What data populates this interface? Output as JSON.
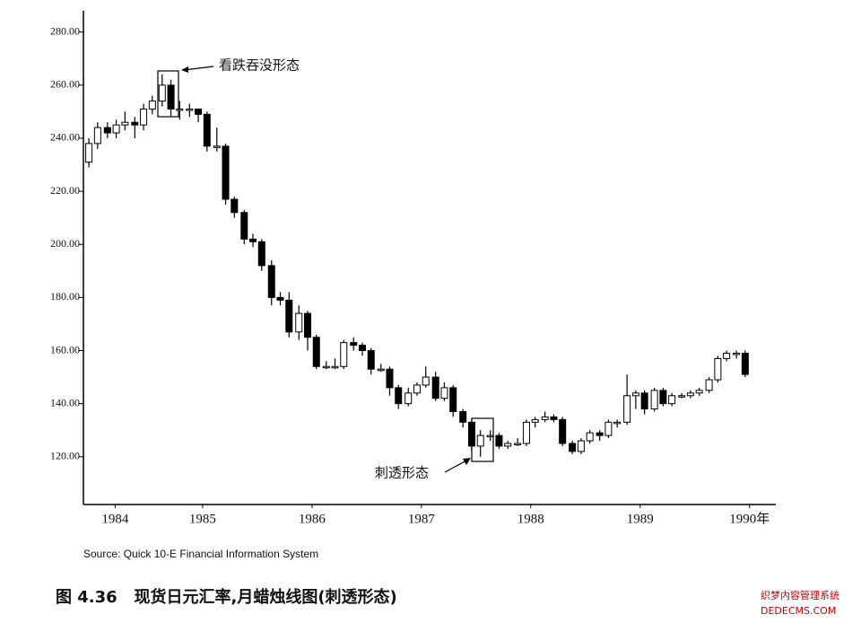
{
  "chart_data": {
    "type": "candlestick",
    "series": [
      {
        "up_color": "#ffffff",
        "down_color": "#000000",
        "color": "#000000",
        "x": [
          1984.46,
          1984.54,
          1984.63,
          1984.71,
          1984.79,
          1984.88,
          1984.96,
          1985.04,
          1985.13,
          1985.21,
          1985.29,
          1985.38,
          1985.46,
          1985.54,
          1985.63,
          1985.71,
          1985.79,
          1985.88,
          1985.96,
          1986.04,
          1986.13,
          1986.21,
          1986.29,
          1986.38,
          1986.46,
          1986.54,
          1986.63,
          1986.71,
          1986.79,
          1986.88,
          1986.96,
          1987.04,
          1987.13,
          1987.21,
          1987.29,
          1987.38,
          1987.46,
          1987.54,
          1987.63,
          1987.71,
          1987.79,
          1987.88,
          1987.96,
          1988.04,
          1988.13,
          1988.21,
          1988.29,
          1988.38,
          1988.46,
          1988.54,
          1988.63,
          1988.71,
          1988.79,
          1988.88,
          1988.96,
          1989.04,
          1989.13,
          1989.21,
          1989.29,
          1989.38,
          1989.46,
          1989.54,
          1989.63,
          1989.71,
          1989.79,
          1989.88,
          1989.96,
          1990.04,
          1990.13,
          1990.21,
          1990.29,
          1990.38,
          1990.46
        ],
        "open": [
          231,
          238,
          244,
          242,
          245,
          246,
          245,
          251,
          254,
          260,
          251,
          251,
          251,
          249,
          237,
          237,
          217,
          212,
          202,
          201,
          192,
          180,
          179,
          167,
          174,
          165,
          154,
          154,
          154,
          163,
          162,
          160,
          153,
          153,
          146,
          140,
          144,
          147,
          150,
          142,
          146,
          137,
          133,
          124,
          128,
          128,
          124,
          125,
          125,
          133,
          134,
          135,
          134,
          125,
          122,
          126,
          129,
          128,
          133,
          133,
          143,
          144,
          138,
          145,
          140,
          143,
          143,
          144,
          145,
          149,
          157,
          159,
          159
        ],
        "high": [
          240,
          246,
          246,
          247,
          250,
          248,
          253,
          256,
          264,
          262,
          254,
          253,
          251,
          250,
          244,
          238,
          218,
          213,
          204,
          202,
          194,
          182,
          182,
          177,
          175,
          166,
          156,
          157,
          164,
          165,
          163,
          161,
          155,
          154,
          147,
          146,
          148,
          154,
          152,
          148,
          147,
          138,
          134,
          130,
          130,
          129,
          126,
          127,
          134,
          135,
          137,
          136,
          135,
          126,
          127,
          130,
          130,
          134,
          134,
          151,
          145,
          145,
          146,
          146,
          144,
          144,
          145,
          146,
          150,
          158,
          160,
          160,
          160
        ],
        "low": [
          229,
          236,
          240,
          240,
          243,
          240,
          243,
          249,
          252,
          248,
          247,
          248,
          246,
          235,
          235,
          215,
          210,
          200,
          199,
          190,
          177,
          177,
          165,
          164,
          160,
          153,
          153,
          153,
          153,
          160,
          158,
          151,
          152,
          143,
          138,
          139,
          143,
          146,
          141,
          141,
          135,
          131,
          122,
          120,
          126,
          123,
          123,
          124,
          124,
          131,
          133,
          133,
          124,
          121,
          121,
          125,
          126,
          127,
          131,
          132,
          138,
          136,
          137,
          139,
          139,
          142,
          142,
          143,
          144,
          148,
          156,
          157,
          150
        ],
        "close": [
          238,
          244,
          242,
          245,
          246,
          245,
          251,
          254,
          260,
          251,
          251,
          251,
          249,
          237,
          237,
          217,
          212,
          202,
          201,
          192,
          180,
          179,
          167,
          174,
          165,
          154,
          154,
          154,
          163,
          162,
          160,
          153,
          153,
          146,
          140,
          144,
          147,
          150,
          142,
          146,
          137,
          133,
          124,
          128,
          128,
          124,
          125,
          125,
          133,
          134,
          135,
          134,
          125,
          122,
          126,
          129,
          128,
          133,
          133,
          143,
          144,
          138,
          145,
          140,
          143,
          143,
          144,
          145,
          149,
          157,
          159,
          159,
          151
        ]
      }
    ],
    "ylim": [
      102,
      287
    ],
    "yticks": [
      {
        "value": 120,
        "label": "120.00"
      },
      {
        "value": 140,
        "label": "140.00"
      },
      {
        "value": 160,
        "label": "160.00"
      },
      {
        "value": 180,
        "label": "180.00"
      },
      {
        "value": 200,
        "label": "200.00"
      },
      {
        "value": 220,
        "label": "220.00"
      },
      {
        "value": 240,
        "label": "240.00"
      },
      {
        "value": 260,
        "label": "260.00"
      },
      {
        "value": 280,
        "label": "280.00"
      }
    ],
    "xlim": [
      1984.41,
      1990.74
    ],
    "xticks": [
      {
        "value": 1984.7,
        "label": "1984"
      },
      {
        "value": 1985.5,
        "label": "1985"
      },
      {
        "value": 1986.5,
        "label": "1986"
      },
      {
        "value": 1987.5,
        "label": "1987"
      },
      {
        "value": 1988.5,
        "label": "1988"
      },
      {
        "value": 1989.5,
        "label": "1989"
      },
      {
        "value": 1990.5,
        "label": "1990年"
      }
    ],
    "annotations": [
      "看跌吞没形态",
      "刺透形态"
    ],
    "source": "Source: Quick 10-E Financial Information System",
    "caption": "图 4.36   现货日元汇率,月蜡烛线图(刺透形态)",
    "watermark": [
      "织梦内容管理系统",
      "DEDECMS.COM"
    ]
  }
}
